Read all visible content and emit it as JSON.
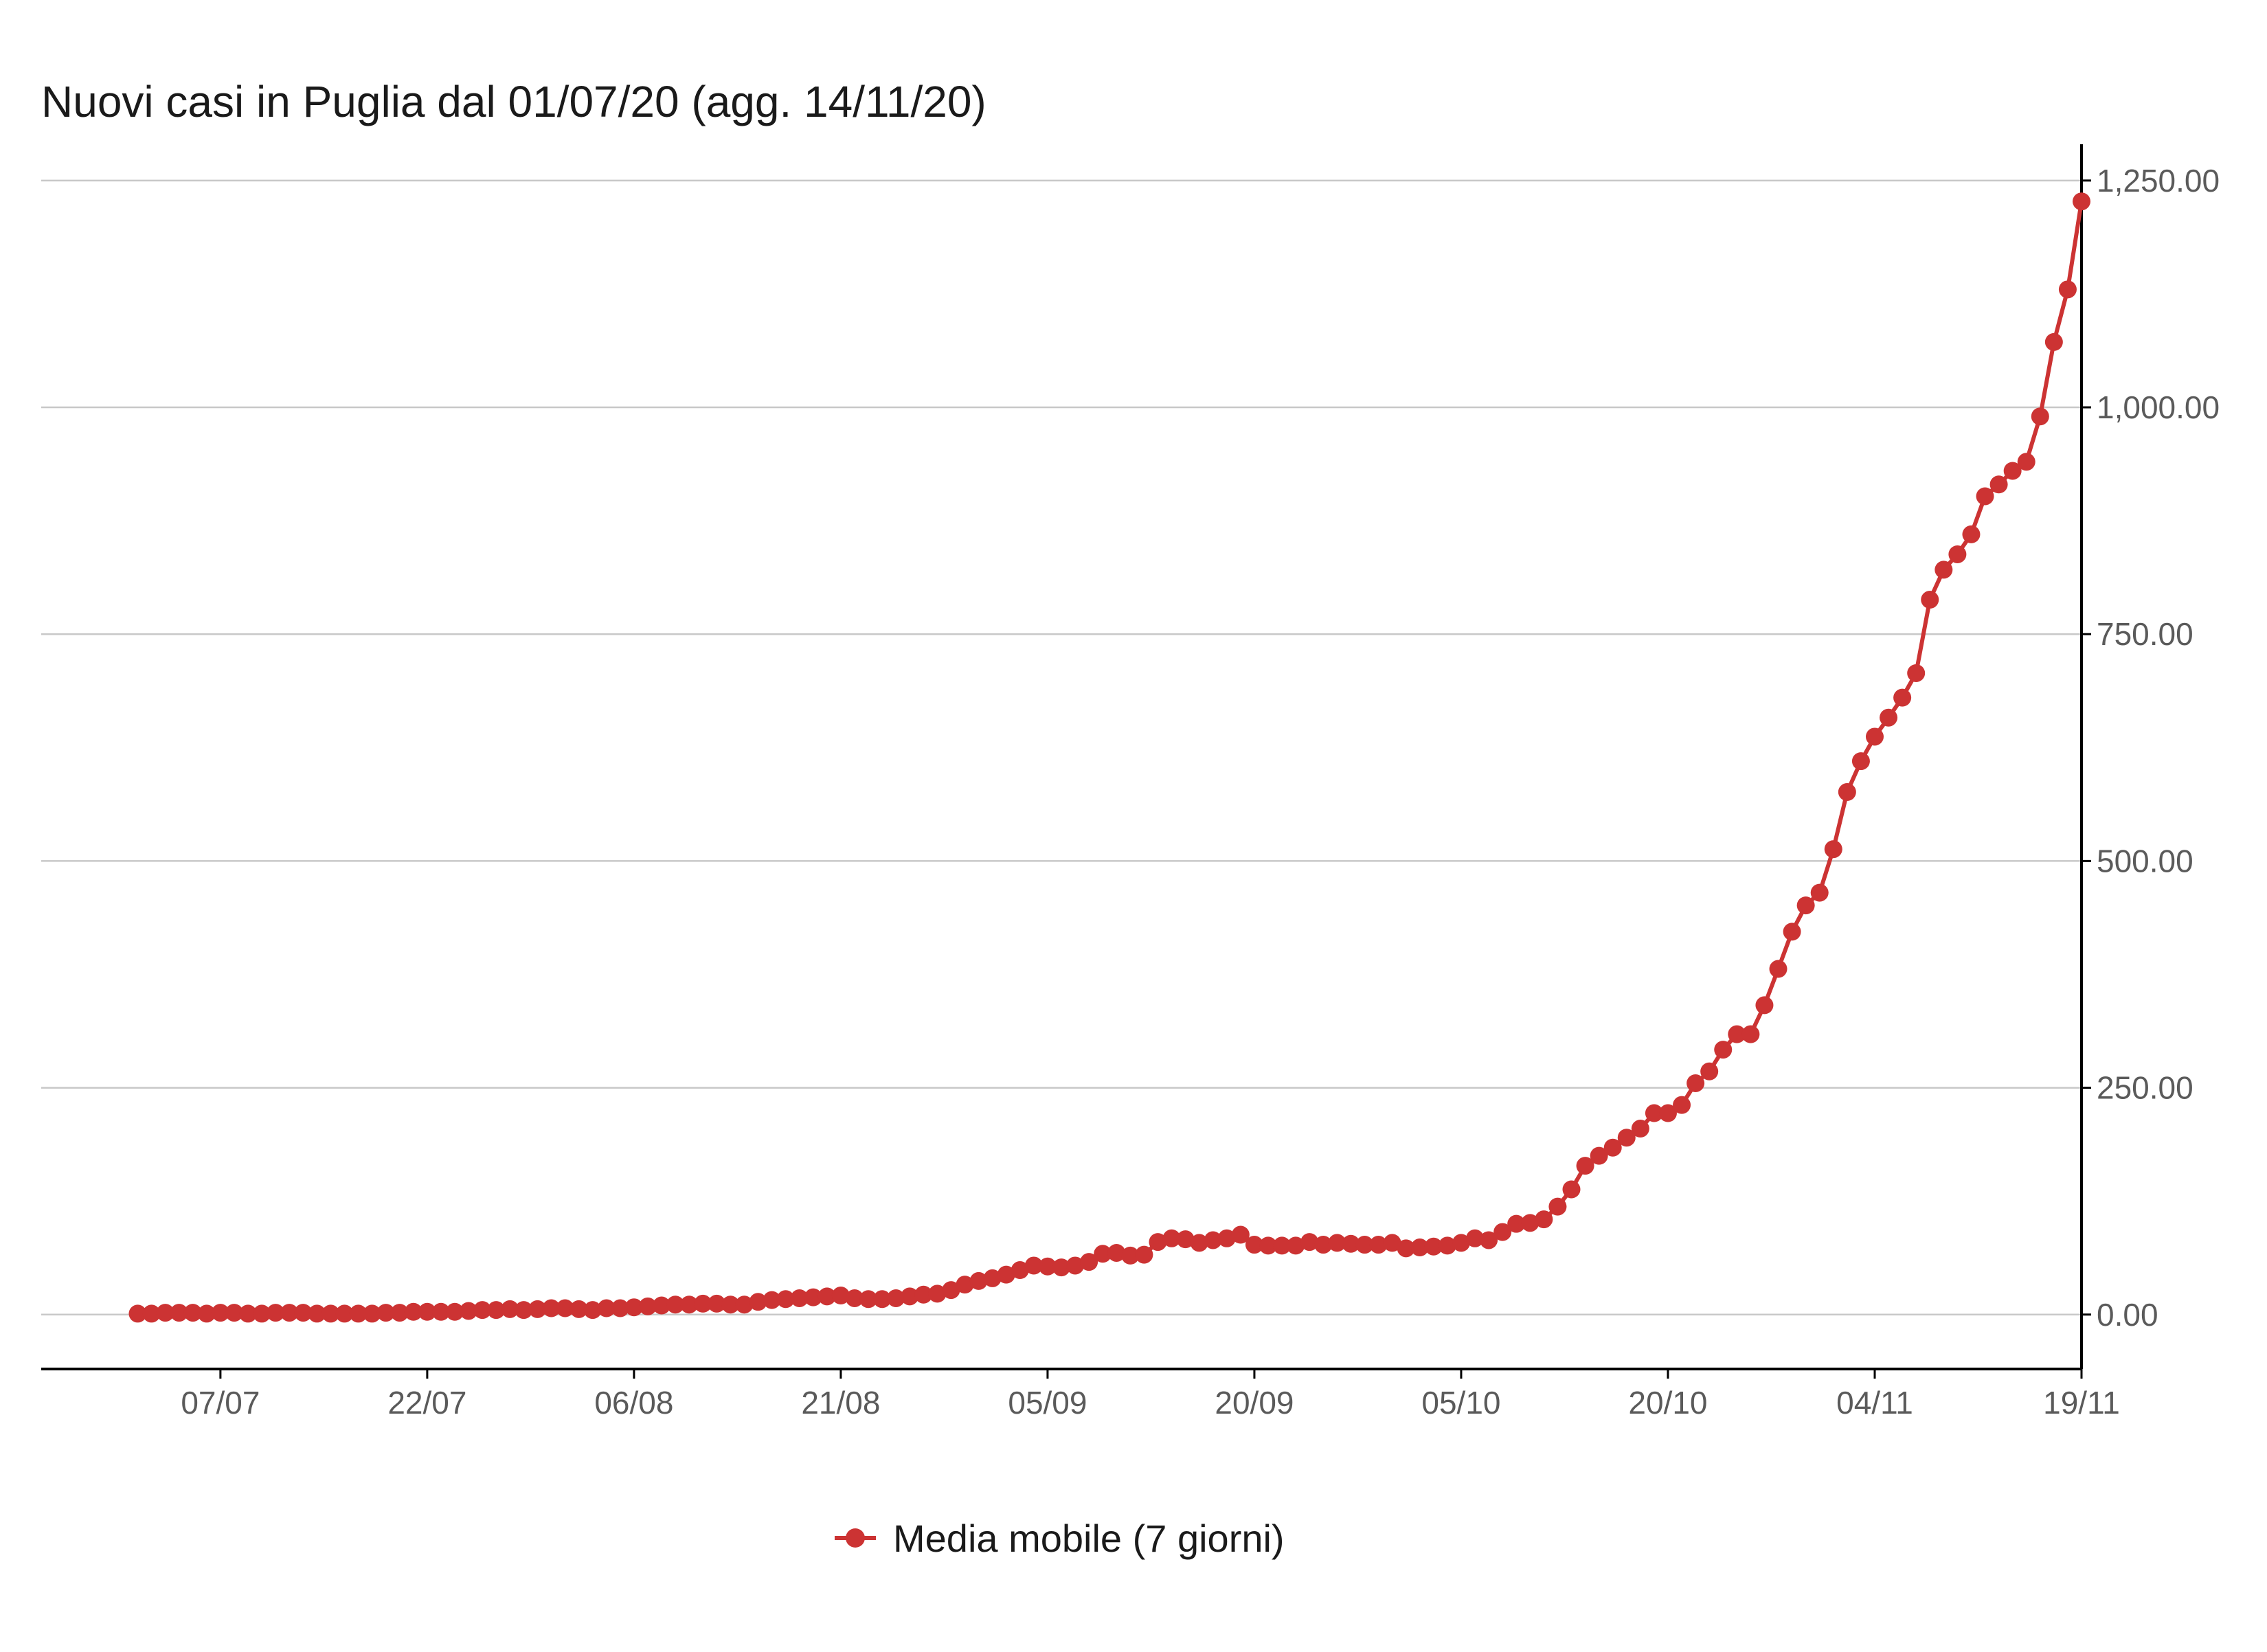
{
  "chart_data": {
    "type": "line",
    "title": "Nuovi casi in Puglia dal 01/07/20 (agg. 14/11/20)",
    "xlabel": "",
    "ylabel": "",
    "x_start_date": "2020-07-01",
    "xlim": [
      "2020-06-24",
      "2020-11-19"
    ],
    "ylim": [
      -60,
      1290
    ],
    "x_ticks": [
      {
        "date": "2020-07-07",
        "label": "07/07"
      },
      {
        "date": "2020-07-22",
        "label": "22/07"
      },
      {
        "date": "2020-08-06",
        "label": "06/08"
      },
      {
        "date": "2020-08-21",
        "label": "21/08"
      },
      {
        "date": "2020-09-05",
        "label": "05/09"
      },
      {
        "date": "2020-09-20",
        "label": "20/09"
      },
      {
        "date": "2020-10-05",
        "label": "05/10"
      },
      {
        "date": "2020-10-20",
        "label": "20/10"
      },
      {
        "date": "2020-11-04",
        "label": "04/11"
      },
      {
        "date": "2020-11-19",
        "label": "19/11"
      }
    ],
    "y_ticks": [
      {
        "value": 0,
        "label": "0.00"
      },
      {
        "value": 250,
        "label": "250.00"
      },
      {
        "value": 500,
        "label": "500.00"
      },
      {
        "value": 750,
        "label": "750.00"
      },
      {
        "value": 1000,
        "label": "1,000.00"
      },
      {
        "value": 1250,
        "label": "1,250.00"
      }
    ],
    "y_axis_position": "right",
    "grid": "horizontal",
    "legend_position": "bottom",
    "series": [
      {
        "name": "Media mobile (7 giorni)",
        "color": "#cc3333",
        "values": [
          1,
          1,
          2,
          2,
          2,
          1,
          2,
          2,
          1,
          1,
          2,
          2,
          2,
          1,
          1,
          1,
          1,
          1,
          2,
          2,
          3,
          3,
          3,
          3,
          4,
          5,
          5,
          6,
          5,
          6,
          7,
          7,
          6,
          5,
          7,
          7,
          8,
          9,
          10,
          11,
          11,
          12,
          12,
          11,
          11,
          14,
          16,
          17,
          18,
          19,
          20,
          21,
          18,
          17,
          17,
          18,
          20,
          22,
          23,
          27,
          33,
          37,
          40,
          44,
          49,
          54,
          53,
          52,
          54,
          58,
          67,
          68,
          65,
          66,
          80,
          84,
          83,
          79,
          82,
          84,
          88,
          77,
          76,
          76,
          76,
          80,
          77,
          79,
          78,
          77,
          77,
          79,
          73,
          74,
          75,
          76,
          79,
          84,
          82,
          91,
          100,
          101,
          105,
          119,
          138,
          164,
          175,
          184,
          195,
          205,
          222,
          222,
          231,
          255,
          268,
          292,
          309,
          309,
          341,
          381,
          422,
          451,
          465,
          513,
          576,
          610,
          637,
          658,
          680,
          707,
          788,
          821,
          838,
          860,
          902,
          915,
          930,
          940,
          990,
          1072,
          1130,
          1227
        ]
      }
    ]
  }
}
